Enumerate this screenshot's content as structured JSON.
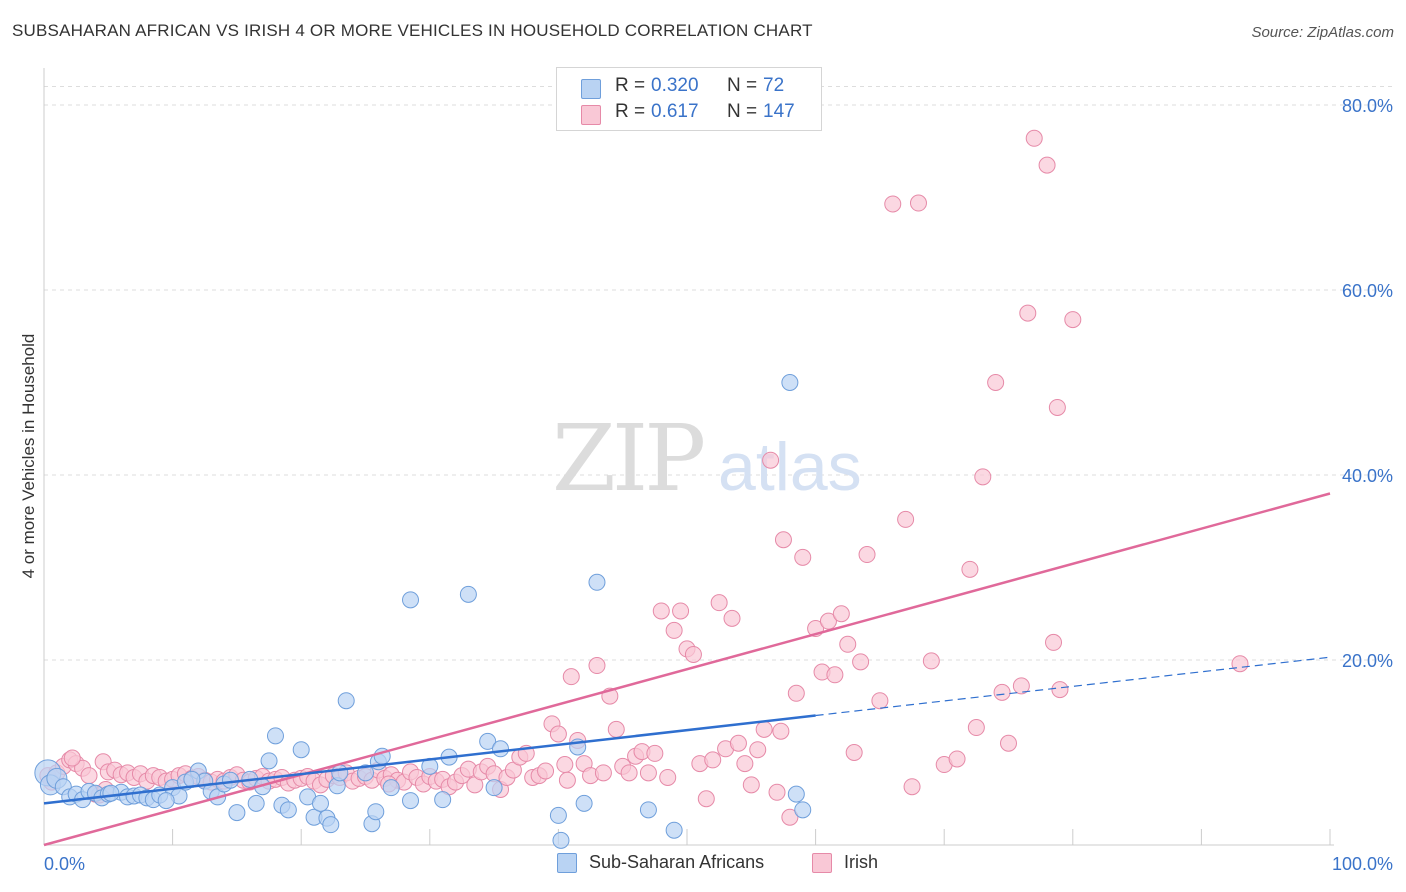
{
  "title": "SUBSAHARAN AFRICAN VS IRISH 4 OR MORE VEHICLES IN HOUSEHOLD CORRELATION CHART",
  "source": "Source: ZipAtlas.com",
  "legend_top": {
    "rows": [
      {
        "r_label": "R =",
        "r_value": "0.320",
        "n_label": "N =",
        "n_value": "72"
      },
      {
        "r_label": "R =",
        "r_value": "0.617",
        "n_label": "N =",
        "n_value": "147"
      }
    ]
  },
  "legend_bottom": [
    "Sub-Saharan Africans",
    "Irish"
  ],
  "watermark": {
    "zip": "ZIP",
    "atlas": "atlas"
  },
  "colors": {
    "blue_fill": "#b9d3f3",
    "blue_stroke": "#6f9fdb",
    "blue_line": "#2f6fcf",
    "pink_fill": "#f9c8d6",
    "pink_stroke": "#e68aa8",
    "pink_line": "#e0699a",
    "tick_label": "#3a73c9",
    "grid": "#dddddd"
  },
  "chart_data": {
    "type": "scatter",
    "xlabel": "",
    "ylabel": "4 or more Vehicles in Household",
    "xlim": [
      0,
      100
    ],
    "ylim": [
      0,
      84
    ],
    "x_tick_labels": [
      "0.0%",
      "100.0%"
    ],
    "y_ticks": [
      20,
      40,
      60,
      80
    ],
    "y_tick_labels": [
      "20.0%",
      "40.0%",
      "60.0%",
      "80.0%"
    ],
    "grid": true,
    "legend_position": "top-center",
    "series": [
      {
        "name": "Sub-Saharan Africans",
        "r": 0.32,
        "n": 72,
        "trend": {
          "x0": 0,
          "y0": 4.5,
          "x1": 60,
          "y1": 14.0,
          "dash_x1": 100,
          "dash_y1": 20.3
        },
        "points": [
          [
            0.3,
            7.8
          ],
          [
            0.5,
            6.5
          ],
          [
            1,
            7.2
          ],
          [
            1.5,
            6.3
          ],
          [
            2,
            5.2
          ],
          [
            2.5,
            5.5
          ],
          [
            3,
            4.9
          ],
          [
            3.5,
            5.8
          ],
          [
            4,
            5.6
          ],
          [
            4.5,
            5.1
          ],
          [
            5,
            5.5
          ],
          [
            6,
            5.7
          ],
          [
            6.5,
            5.2
          ],
          [
            7,
            5.3
          ],
          [
            7.5,
            5.4
          ],
          [
            8,
            5.1
          ],
          [
            8.5,
            4.9
          ],
          [
            9,
            5.4
          ],
          [
            10,
            6.2
          ],
          [
            10.5,
            5.3
          ],
          [
            11,
            6.8
          ],
          [
            12,
            8.0
          ],
          [
            12.5,
            6.9
          ],
          [
            13,
            5.8
          ],
          [
            13.5,
            5.2
          ],
          [
            14,
            6.6
          ],
          [
            15,
            3.5
          ],
          [
            16,
            7.1
          ],
          [
            16.5,
            4.5
          ],
          [
            17,
            6.3
          ],
          [
            17.5,
            9.1
          ],
          [
            18,
            11.8
          ],
          [
            18.5,
            4.3
          ],
          [
            19,
            3.8
          ],
          [
            20,
            10.3
          ],
          [
            20.5,
            5.2
          ],
          [
            21,
            3.0
          ],
          [
            21.5,
            4.5
          ],
          [
            22,
            2.9
          ],
          [
            22.3,
            2.2
          ],
          [
            22.8,
            6.4
          ],
          [
            23,
            7.8
          ],
          [
            23.5,
            15.6
          ],
          [
            25,
            7.8
          ],
          [
            25.5,
            2.3
          ],
          [
            25.8,
            3.6
          ],
          [
            26,
            9.0
          ],
          [
            26.3,
            9.6
          ],
          [
            27,
            6.2
          ],
          [
            28.5,
            4.8
          ],
          [
            28.5,
            26.5
          ],
          [
            30,
            8.5
          ],
          [
            31,
            4.9
          ],
          [
            31.5,
            9.5
          ],
          [
            33,
            27.1
          ],
          [
            34.5,
            11.2
          ],
          [
            35,
            6.2
          ],
          [
            35.5,
            10.4
          ],
          [
            40,
            3.2
          ],
          [
            40.2,
            0.5
          ],
          [
            41.5,
            10.6
          ],
          [
            42,
            4.5
          ],
          [
            43,
            28.4
          ],
          [
            47,
            3.8
          ],
          [
            49,
            1.6
          ],
          [
            58,
            50.0
          ],
          [
            58.5,
            5.5
          ],
          [
            59,
            3.8
          ],
          [
            5.2,
            5.6
          ],
          [
            9.5,
            4.8
          ],
          [
            11.5,
            7.1
          ],
          [
            14.5,
            7.0
          ]
        ]
      },
      {
        "name": "Irish",
        "r": 0.617,
        "n": 147,
        "trend": {
          "x0": 0,
          "y0": 0,
          "x1": 100,
          "y1": 38.0
        },
        "points": [
          [
            0.3,
            7.5
          ],
          [
            0.6,
            6.8
          ],
          [
            1,
            7.8
          ],
          [
            1.5,
            8.5
          ],
          [
            2,
            9.2
          ],
          [
            2.5,
            8.8
          ],
          [
            3,
            8.3
          ],
          [
            3.5,
            7.5
          ],
          [
            4,
            5.5
          ],
          [
            4.3,
            5.4
          ],
          [
            4.6,
            9.0
          ],
          [
            5,
            7.9
          ],
          [
            5.5,
            8.1
          ],
          [
            6,
            7.6
          ],
          [
            6.5,
            7.8
          ],
          [
            7,
            7.3
          ],
          [
            7.5,
            7.7
          ],
          [
            8,
            6.9
          ],
          [
            8.5,
            7.5
          ],
          [
            9,
            7.3
          ],
          [
            9.5,
            6.9
          ],
          [
            10,
            7.1
          ],
          [
            10.5,
            7.5
          ],
          [
            11,
            7.7
          ],
          [
            11.5,
            7.2
          ],
          [
            12,
            7.4
          ],
          [
            12.5,
            7.0
          ],
          [
            13,
            6.8
          ],
          [
            13.5,
            7.1
          ],
          [
            14,
            6.9
          ],
          [
            14.5,
            7.3
          ],
          [
            15,
            7.6
          ],
          [
            15.5,
            7.0
          ],
          [
            16,
            6.8
          ],
          [
            16.5,
            7.2
          ],
          [
            17,
            7.4
          ],
          [
            17.5,
            6.9
          ],
          [
            18,
            7.1
          ],
          [
            18.5,
            7.3
          ],
          [
            19,
            6.7
          ],
          [
            19.5,
            7.0
          ],
          [
            20,
            7.2
          ],
          [
            20.5,
            7.4
          ],
          [
            21,
            6.9
          ],
          [
            21.5,
            6.5
          ],
          [
            22,
            7.1
          ],
          [
            22.5,
            7.5
          ],
          [
            23,
            7.3
          ],
          [
            23.5,
            7.8
          ],
          [
            24,
            6.9
          ],
          [
            24.5,
            7.2
          ],
          [
            25,
            7.4
          ],
          [
            25.5,
            7.0
          ],
          [
            26,
            8.1
          ],
          [
            26.5,
            7.2
          ],
          [
            27,
            7.6
          ],
          [
            27.5,
            7.0
          ],
          [
            28,
            6.8
          ],
          [
            28.5,
            7.9
          ],
          [
            29,
            7.3
          ],
          [
            29.5,
            6.6
          ],
          [
            30,
            7.4
          ],
          [
            30.5,
            6.9
          ],
          [
            31,
            7.1
          ],
          [
            31.5,
            6.3
          ],
          [
            32,
            6.8
          ],
          [
            32.5,
            7.5
          ],
          [
            33,
            8.2
          ],
          [
            33.5,
            6.5
          ],
          [
            34,
            7.9
          ],
          [
            34.5,
            8.5
          ],
          [
            35,
            7.7
          ],
          [
            35.5,
            6.0
          ],
          [
            36,
            7.3
          ],
          [
            36.5,
            8.1
          ],
          [
            37,
            9.5
          ],
          [
            37.5,
            9.9
          ],
          [
            38,
            7.3
          ],
          [
            38.5,
            7.5
          ],
          [
            39,
            8.0
          ],
          [
            39.5,
            13.1
          ],
          [
            40,
            12.0
          ],
          [
            40.5,
            8.7
          ],
          [
            41,
            18.2
          ],
          [
            41.5,
            11.3
          ],
          [
            42,
            8.8
          ],
          [
            42.5,
            7.5
          ],
          [
            43,
            19.4
          ],
          [
            43.5,
            7.8
          ],
          [
            44,
            16.1
          ],
          [
            44.5,
            12.5
          ],
          [
            45,
            8.5
          ],
          [
            45.5,
            7.8
          ],
          [
            46,
            9.6
          ],
          [
            46.5,
            10.1
          ],
          [
            47,
            7.8
          ],
          [
            47.5,
            9.9
          ],
          [
            48,
            25.3
          ],
          [
            48.5,
            7.3
          ],
          [
            49,
            23.2
          ],
          [
            49.5,
            25.3
          ],
          [
            50,
            21.2
          ],
          [
            50.5,
            20.6
          ],
          [
            51,
            8.8
          ],
          [
            51.5,
            5.0
          ],
          [
            52,
            9.2
          ],
          [
            52.5,
            26.2
          ],
          [
            53,
            10.4
          ],
          [
            53.5,
            24.5
          ],
          [
            54,
            11.0
          ],
          [
            54.5,
            8.8
          ],
          [
            55,
            6.5
          ],
          [
            55.5,
            10.3
          ],
          [
            56,
            12.5
          ],
          [
            56.5,
            41.6
          ],
          [
            57,
            5.7
          ],
          [
            57.5,
            33.0
          ],
          [
            58,
            3.0
          ],
          [
            58.5,
            16.4
          ],
          [
            59,
            31.1
          ],
          [
            60,
            23.4
          ],
          [
            60.5,
            18.7
          ],
          [
            61,
            24.2
          ],
          [
            61.5,
            18.4
          ],
          [
            62,
            25.0
          ],
          [
            62.5,
            21.7
          ],
          [
            63,
            10.0
          ],
          [
            63.5,
            19.8
          ],
          [
            64,
            31.4
          ],
          [
            65,
            15.6
          ],
          [
            66,
            69.3
          ],
          [
            67,
            35.2
          ],
          [
            68,
            69.4
          ],
          [
            69,
            19.9
          ],
          [
            70,
            8.7
          ],
          [
            71,
            9.3
          ],
          [
            72,
            29.8
          ],
          [
            72.5,
            12.7
          ],
          [
            73,
            39.8
          ],
          [
            74,
            50.0
          ],
          [
            75,
            11.0
          ],
          [
            76,
            17.2
          ],
          [
            76.5,
            57.5
          ],
          [
            77,
            76.4
          ],
          [
            78,
            73.5
          ],
          [
            78.5,
            21.9
          ],
          [
            78.8,
            47.3
          ],
          [
            79,
            16.8
          ],
          [
            80,
            56.8
          ],
          [
            93,
            19.6
          ],
          [
            2.2,
            9.4
          ],
          [
            4.8,
            6.0
          ],
          [
            26.8,
            6.6
          ],
          [
            40.7,
            7.0
          ],
          [
            57.3,
            12.3
          ],
          [
            67.5,
            6.3
          ],
          [
            74.5,
            16.5
          ]
        ]
      }
    ]
  }
}
